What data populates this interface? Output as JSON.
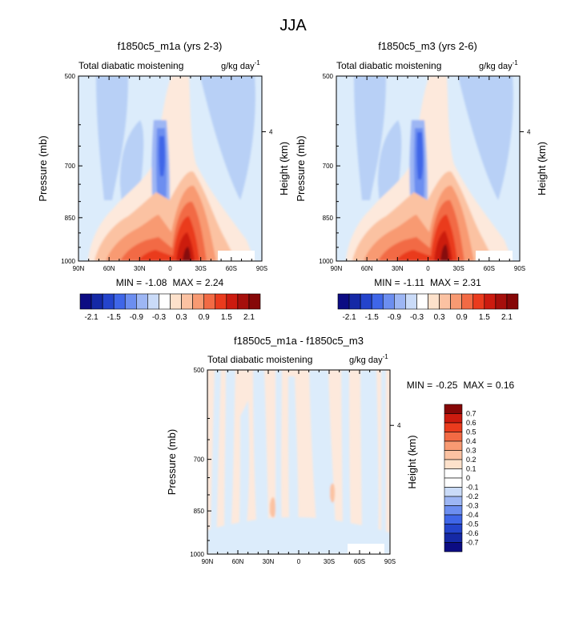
{
  "page_title": "JJA",
  "units_label": "g/kg day",
  "units_exponent": "-1",
  "colors": {
    "base_field": "#dcecfb",
    "frame": "#000000"
  },
  "palettes": {
    "top": [
      "#0c0c83",
      "#1529a6",
      "#2444cc",
      "#3f66e8",
      "#6c8ef0",
      "#9db6f4",
      "#cadbf8",
      "#ffffff",
      "#fde1cb",
      "#fbc2a2",
      "#f89a72",
      "#f26a44",
      "#ea3b1d",
      "#cc1b0f",
      "#a60f0b",
      "#860707"
    ],
    "diff": [
      "#0c0c83",
      "#1529a6",
      "#2444cc",
      "#3f66e8",
      "#6c8ef0",
      "#9db6f4",
      "#cadbf8",
      "#ffffff",
      "#ffffff",
      "#fde1cb",
      "#fbc2a2",
      "#f89a72",
      "#f26a44",
      "#ea3b1d",
      "#cc1b0f",
      "#860707"
    ]
  },
  "chart_data": [
    {
      "type": "contour",
      "id": "panel1",
      "title": "f1850c5_m1a (yrs 2-3)",
      "subtitle_left": "Total diabatic moistening",
      "xlabel": "",
      "ylabel": "Pressure (mb)",
      "ylabel_right": "Height (km)",
      "x_tick_labels": [
        "90N",
        "60N",
        "30N",
        "0",
        "30S",
        "60S",
        "90S"
      ],
      "y_tick_labels": [
        "500",
        "700",
        "850",
        "1000"
      ],
      "y_tick_values_mb": [
        500,
        700,
        850,
        1000
      ],
      "right_tick_labels": [
        "4"
      ],
      "xlim": [
        90,
        -90
      ],
      "ylim_mb": [
        1000,
        500
      ],
      "stats": {
        "min_label": "MIN =",
        "min": "-1.08",
        "max_label": "MAX =",
        "max": "2.24"
      },
      "colorbar": {
        "orientation": "horizontal",
        "labels": [
          "-2.1",
          "-1.5",
          "-0.9",
          "-0.3",
          "0.3",
          "0.9",
          "1.5",
          "2.1"
        ],
        "levels": [
          -2.1,
          -1.8,
          -1.5,
          -1.2,
          -0.9,
          -0.6,
          -0.3,
          0,
          0.3,
          0.6,
          0.9,
          1.2,
          1.5,
          1.8,
          2.1
        ]
      }
    },
    {
      "type": "contour",
      "id": "panel2",
      "title": "f1850c5_m3 (yrs 2-6)",
      "subtitle_left": "Total diabatic moistening",
      "xlabel": "",
      "ylabel": "Pressure (mb)",
      "ylabel_right": "Height (km)",
      "x_tick_labels": [
        "90N",
        "60N",
        "30N",
        "0",
        "30S",
        "60S",
        "90S"
      ],
      "y_tick_labels": [
        "500",
        "700",
        "850",
        "1000"
      ],
      "y_tick_values_mb": [
        500,
        700,
        850,
        1000
      ],
      "right_tick_labels": [
        "4"
      ],
      "xlim": [
        90,
        -90
      ],
      "ylim_mb": [
        1000,
        500
      ],
      "stats": {
        "min_label": "MIN =",
        "min": "-1.11",
        "max_label": "MAX =",
        "max": "2.31"
      },
      "colorbar": {
        "orientation": "horizontal",
        "labels": [
          "-2.1",
          "-1.5",
          "-0.9",
          "-0.3",
          "0.3",
          "0.9",
          "1.5",
          "2.1"
        ],
        "levels": [
          -2.1,
          -1.8,
          -1.5,
          -1.2,
          -0.9,
          -0.6,
          -0.3,
          0,
          0.3,
          0.6,
          0.9,
          1.2,
          1.5,
          1.8,
          2.1
        ]
      }
    },
    {
      "type": "contour",
      "id": "panel3",
      "title": "f1850c5_m1a - f1850c5_m3",
      "subtitle_left": "Total diabatic moistening",
      "xlabel": "",
      "ylabel": "Pressure (mb)",
      "ylabel_right": "Height (km)",
      "x_tick_labels": [
        "90N",
        "60N",
        "30N",
        "0",
        "30S",
        "60S",
        "90S"
      ],
      "y_tick_labels": [
        "500",
        "700",
        "850",
        "1000"
      ],
      "y_tick_values_mb": [
        500,
        700,
        850,
        1000
      ],
      "right_tick_labels": [
        "4"
      ],
      "xlim": [
        90,
        -90
      ],
      "ylim_mb": [
        1000,
        500
      ],
      "stats": {
        "min_label": "MIN =",
        "min": "-0.25",
        "max_label": "MAX =",
        "max": "0.16"
      },
      "colorbar": {
        "orientation": "vertical",
        "labels": [
          "0.7",
          "0.6",
          "0.5",
          "0.4",
          "0.3",
          "0.2",
          "0.1",
          "0",
          "-0.1",
          "-0.2",
          "-0.3",
          "-0.4",
          "-0.5",
          "-0.6",
          "-0.7"
        ],
        "levels": [
          -0.7,
          -0.6,
          -0.5,
          -0.4,
          -0.3,
          -0.2,
          -0.1,
          0,
          0.1,
          0.2,
          0.3,
          0.4,
          0.5,
          0.6,
          0.7
        ]
      }
    }
  ]
}
